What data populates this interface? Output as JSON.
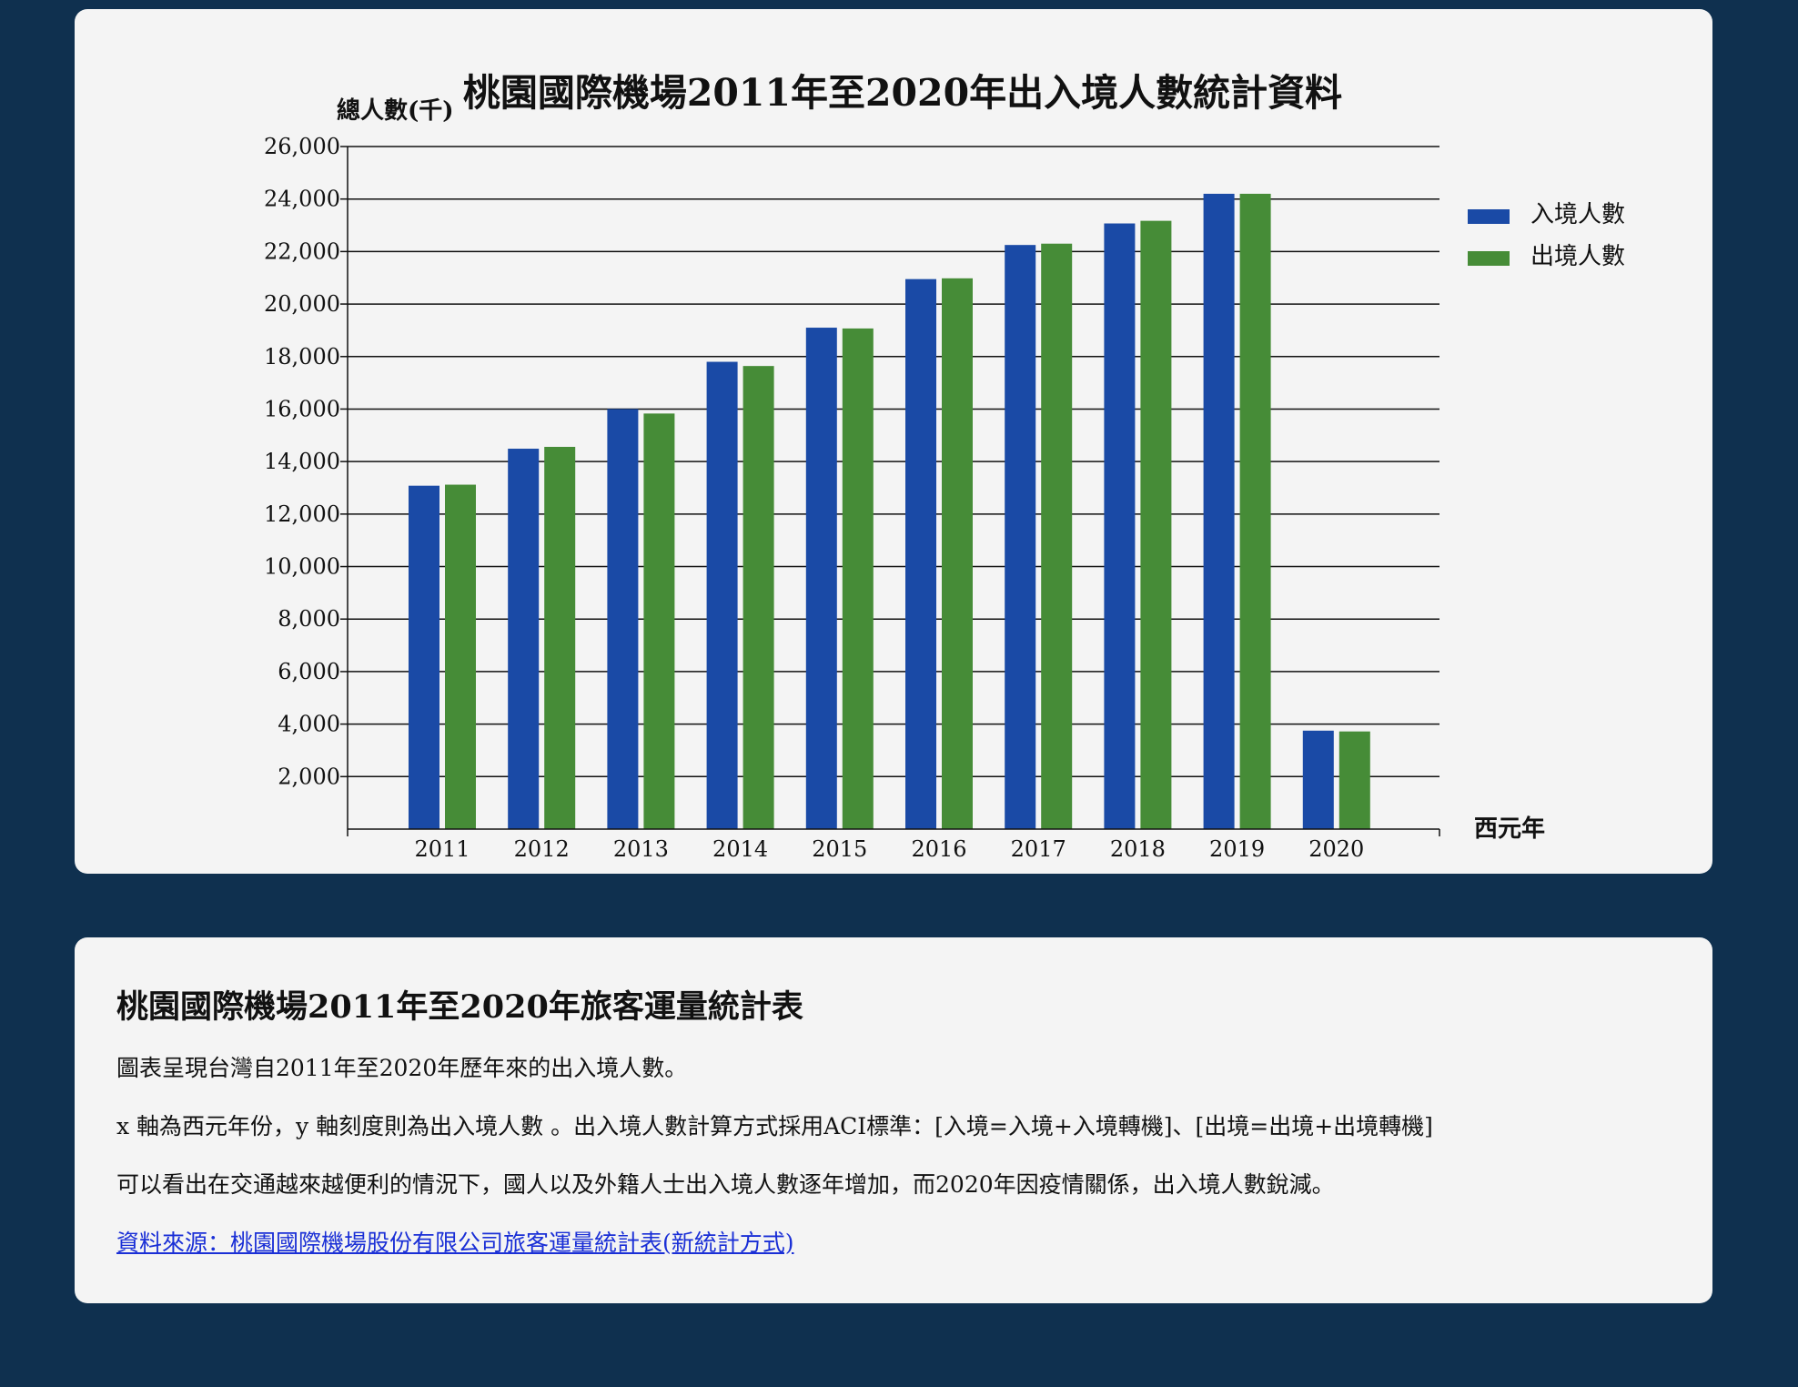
{
  "chart_data": {
    "type": "bar",
    "title": "桃園國際機場2011年至2020年出入境人數統計資料",
    "ylabel": "總人數(千)",
    "xlabel": "西元年",
    "categories": [
      "2011",
      "2012",
      "2013",
      "2014",
      "2015",
      "2016",
      "2017",
      "2018",
      "2019",
      "2020"
    ],
    "ylim": [
      0,
      26000
    ],
    "yticks": [
      2000,
      4000,
      6000,
      8000,
      10000,
      12000,
      14000,
      16000,
      18000,
      20000,
      22000,
      24000,
      26000
    ],
    "grid": true,
    "legend_position": "right",
    "series": [
      {
        "name": "入境人數",
        "color": "#1a4aa6",
        "values": [
          13080,
          14490,
          16000,
          17800,
          19100,
          20950,
          22250,
          23070,
          24200,
          3750
        ]
      },
      {
        "name": "出境人數",
        "color": "#468c37",
        "values": [
          13120,
          14560,
          15830,
          17640,
          19070,
          20980,
          22300,
          23170,
          24200,
          3720
        ]
      }
    ]
  },
  "info": {
    "title": "桃園國際機場2011年至2020年旅客運量統計表",
    "paragraphs": [
      "圖表呈現台灣自2011年至2020年歷年來的出入境人數。",
      "x 軸為西元年份，y 軸刻度則為出入境人數 。出入境人數計算方式採用ACI標準：[入境=入境+入境轉機]、[出境=出境+出境轉機]",
      "可以看出在交通越來越便利的情況下，國人以及外籍人士出入境人數逐年增加，而2020年因疫情關係，出入境人數銳減。"
    ],
    "source_link": "資料來源：桃園國際機場股份有限公司旅客運量統計表(新統計方式)"
  }
}
